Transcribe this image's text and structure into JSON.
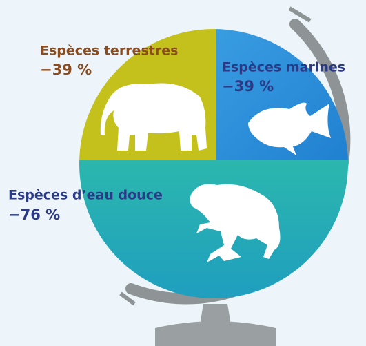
{
  "segments": [
    {
      "label": "Espèces terrestres",
      "value": "−39 %"
    },
    {
      "label": "Espèces marines",
      "value": "−39 %"
    },
    {
      "label": "Espèces d’eau douce",
      "value": "−76 %"
    }
  ]
}
